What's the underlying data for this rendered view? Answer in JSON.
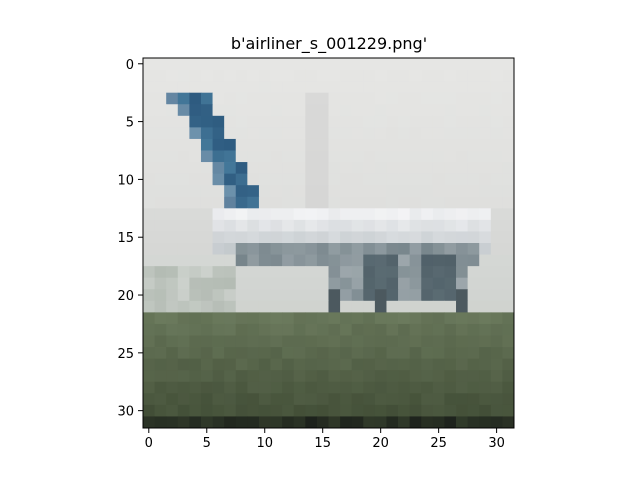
{
  "figure": {
    "title": "b'airliner_s_001229.png'"
  },
  "image": {
    "grid_size": [
      32,
      32
    ],
    "palette": {
      "sky_top": "#e6e6e4",
      "sky_mid": "#d9dad8",
      "tail_dark": "#2d5a7f",
      "tail_light": "#4f86a6",
      "fuselage_white": "#eeeff1",
      "fuselage_gray": "#b9c0c4",
      "engine_dark": "#5b6c73",
      "grass_light": "#6b7a5d",
      "grass_dark": "#3e4a33",
      "ground_black": "#1d221c"
    }
  },
  "axes": {
    "x_ticks": [
      "0",
      "5",
      "10",
      "15",
      "20",
      "25",
      "30"
    ],
    "y_ticks": [
      "0",
      "5",
      "10",
      "15",
      "20",
      "25",
      "30"
    ]
  }
}
